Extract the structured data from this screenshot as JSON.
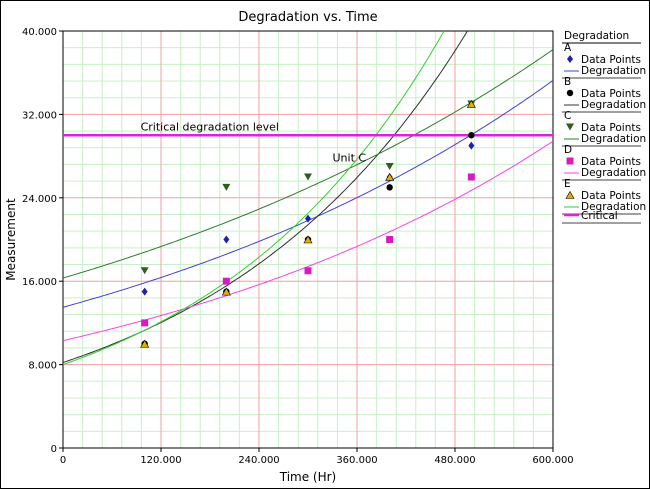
{
  "chart_data": {
    "type": "scatter",
    "title": "Degradation vs. Time",
    "xlabel": "Time (Hr)",
    "ylabel": "Measurement",
    "xlim": [
      0,
      600000
    ],
    "ylim": [
      0,
      40000
    ],
    "x_ticks": [
      "0",
      "120.000",
      "240.000",
      "360.000",
      "480.000",
      "600.000"
    ],
    "y_ticks": [
      "0",
      "8.000",
      "16.000",
      "24.000",
      "32.000",
      "40.000"
    ],
    "grid": true,
    "legend_position": "right",
    "legend_title": "Degradation",
    "points_label": "Data Points",
    "line_label": "Degradation",
    "series": [
      {
        "name": "A",
        "color": "#1f1fb4",
        "line_color": "#4040e0",
        "marker": "diamond",
        "points": [
          [
            100000,
            15000
          ],
          [
            200000,
            20000
          ],
          [
            300000,
            22000
          ],
          [
            400000,
            26000
          ],
          [
            500000,
            29000
          ]
        ],
        "curve": {
          "a": 13500,
          "b": 1.6e-06
        }
      },
      {
        "name": "B",
        "color": "#000000",
        "line_color": "#303030",
        "marker": "circle",
        "points": [
          [
            100000,
            10000
          ],
          [
            200000,
            15000
          ],
          [
            300000,
            20000
          ],
          [
            400000,
            25000
          ],
          [
            500000,
            30000
          ]
        ],
        "curve": {
          "a": 8200,
          "b": 3.2e-06
        }
      },
      {
        "name": "C",
        "color": "#2e5e1e",
        "line_color": "#2e7d2e",
        "marker": "triangle-down",
        "points": [
          [
            100000,
            17000
          ],
          [
            200000,
            25000
          ],
          [
            300000,
            26000
          ],
          [
            400000,
            27000
          ],
          [
            500000,
            33000
          ]
        ],
        "curve": {
          "a": 16300,
          "b": 1.42e-06
        }
      },
      {
        "name": "D",
        "color": "#d81bbf",
        "line_color": "#ff40e0",
        "marker": "square",
        "points": [
          [
            100000,
            12000
          ],
          [
            200000,
            16000
          ],
          [
            300000,
            17000
          ],
          [
            400000,
            20000
          ],
          [
            500000,
            26000
          ]
        ],
        "curve": {
          "a": 10300,
          "b": 1.75e-06
        }
      },
      {
        "name": "E",
        "color": "#e0b000",
        "line_color": "#30d030",
        "marker": "triangle-up",
        "points": [
          [
            100000,
            10000
          ],
          [
            200000,
            15000
          ],
          [
            300000,
            20000
          ],
          [
            400000,
            26000
          ],
          [
            500000,
            33000
          ]
        ],
        "curve": {
          "a": 8000,
          "b": 3.45e-06
        }
      }
    ],
    "critical": {
      "value": 30000,
      "label": "Critical degradation level",
      "legend": "Critical",
      "color": "#e020e0"
    },
    "annotation": {
      "text": "Unit C",
      "x": 330000,
      "y": 27500
    }
  }
}
